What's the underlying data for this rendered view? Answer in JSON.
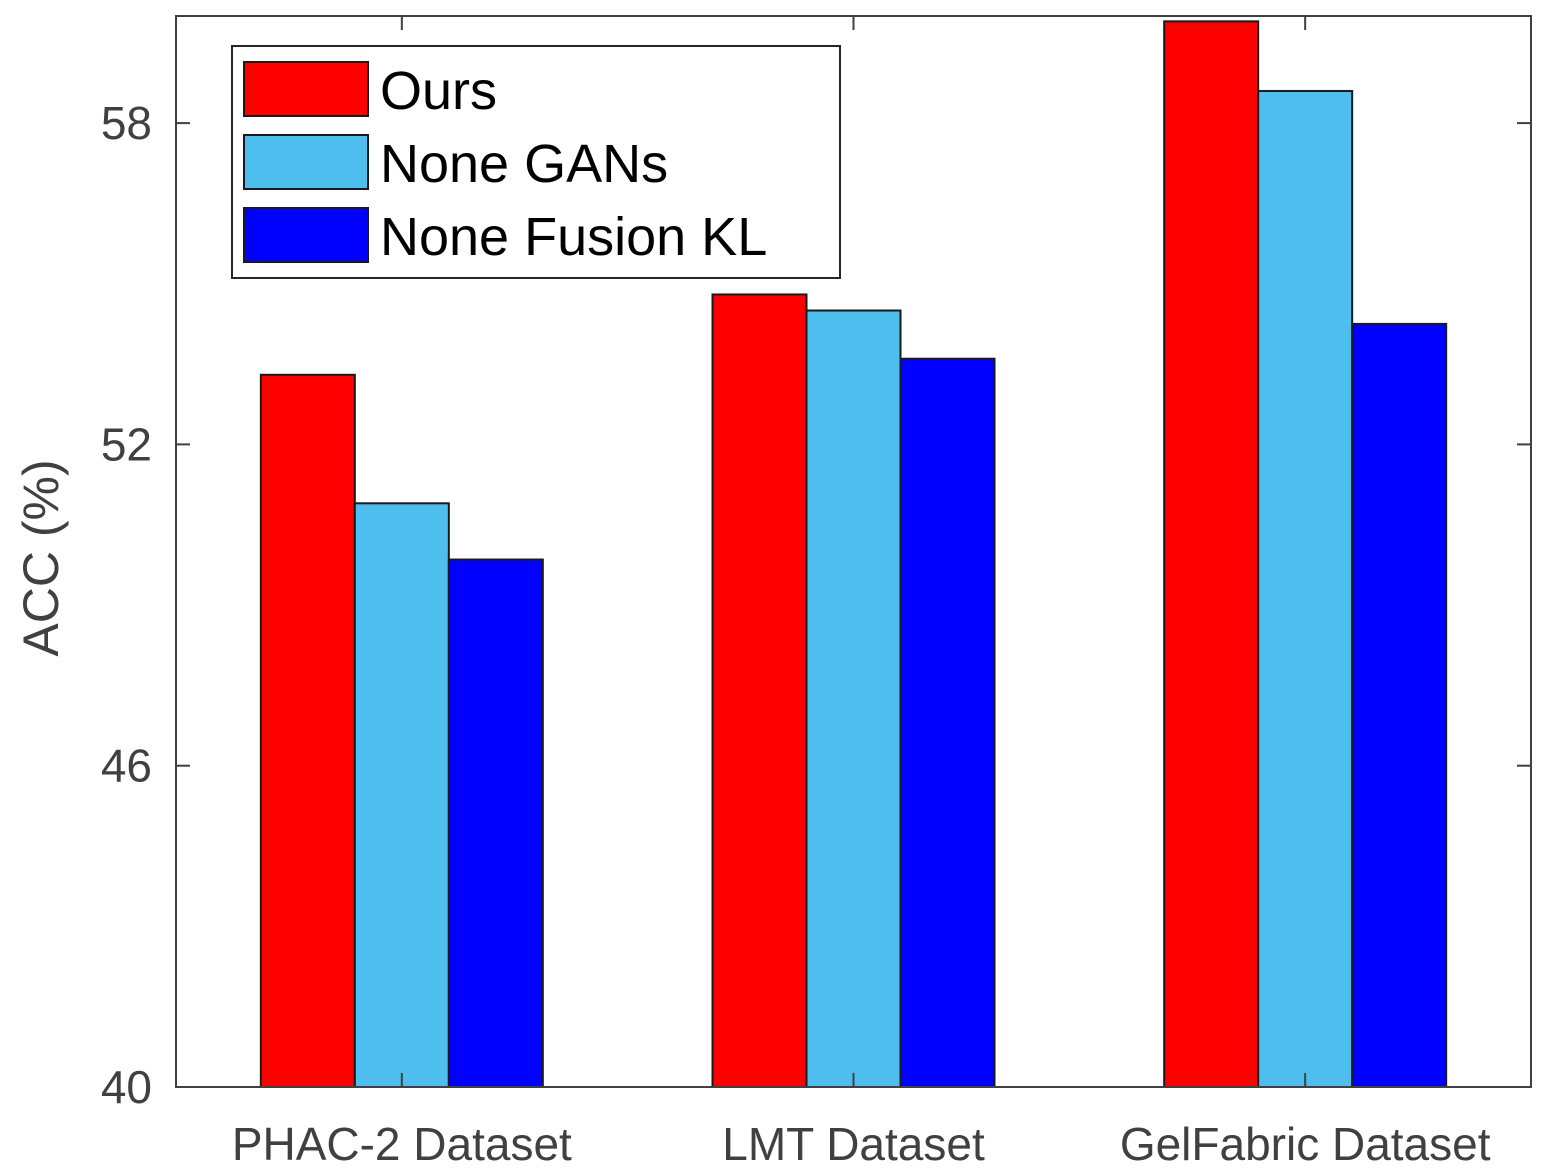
{
  "chart_data": {
    "type": "bar",
    "title": "",
    "xlabel": "",
    "ylabel": "ACC (%)",
    "ylim": [
      40,
      60
    ],
    "yticks": [
      40,
      46,
      52,
      58
    ],
    "grid": false,
    "legend_position": "top-left",
    "categories": [
      "PHAC-2 Dataset",
      "LMT Dataset",
      "GelFabric Dataset"
    ],
    "series": [
      {
        "name": "Ours",
        "color": "#ff0000",
        "values": [
          53.3,
          54.8,
          59.9
        ]
      },
      {
        "name": "None GANs",
        "color": "#4dbeee",
        "values": [
          50.9,
          54.5,
          58.6
        ]
      },
      {
        "name": "None Fusion KL",
        "color": "#0000ff",
        "values": [
          49.85,
          53.6,
          54.25
        ]
      }
    ]
  }
}
